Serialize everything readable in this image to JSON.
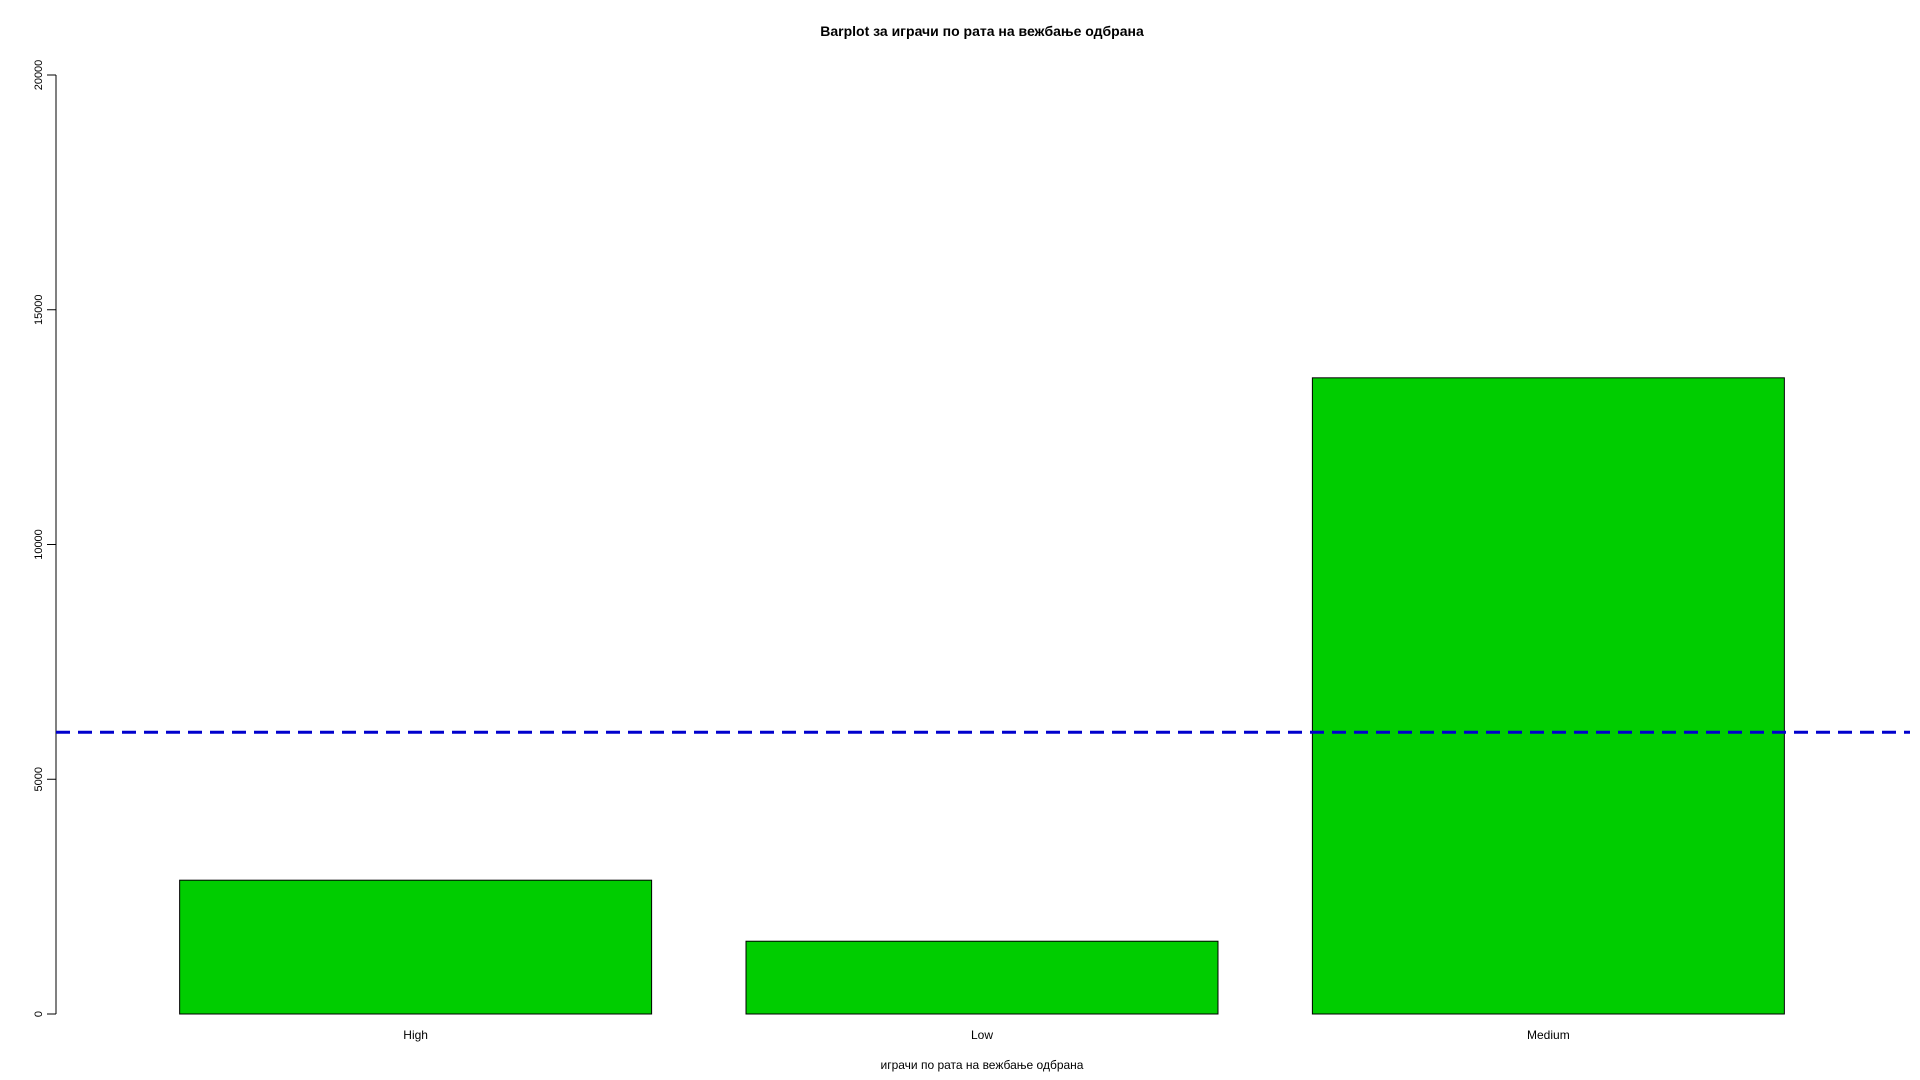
{
  "chart_data": {
    "type": "bar",
    "title": "Barplot за  играчи по рата на вежбање одбрана",
    "xlabel": "играчи по рата на вежбање одбрана",
    "ylabel": "",
    "categories": [
      "High",
      "Low",
      "Medium"
    ],
    "values": [
      2850,
      1550,
      13550
    ],
    "ylim": [
      0,
      20000
    ],
    "yticks": [
      0,
      5000,
      10000,
      15000,
      20000
    ],
    "ytick_labels": [
      "0",
      "5000",
      "10000",
      "15000",
      "20000"
    ],
    "reference_line": {
      "value": 6000,
      "style": "dashed",
      "color": "#0000CD"
    },
    "bar_color": "#00CD00",
    "bar_border_color": "#000000",
    "grid": false,
    "legend": "none"
  }
}
